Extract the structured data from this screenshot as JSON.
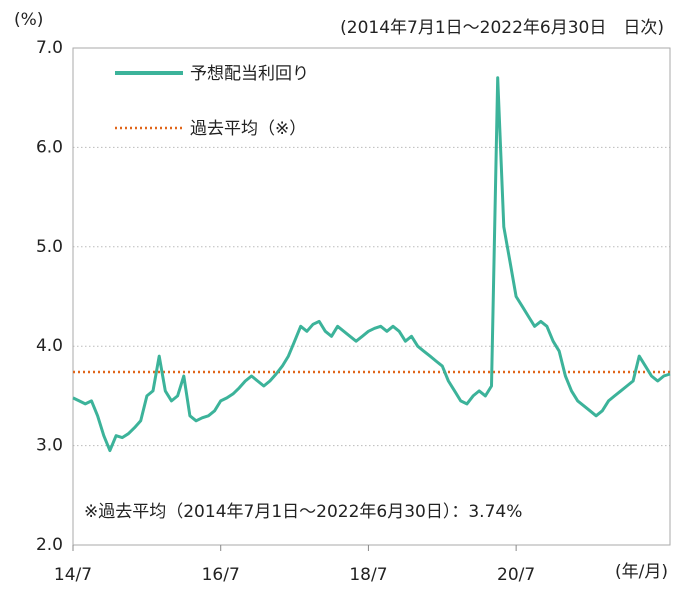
{
  "chart_data": {
    "type": "line",
    "y_unit": "(%)",
    "subtitle": "(2014年7月1日～2022年6月30日　日次)",
    "x_unit": "(年/月)",
    "note": "※過去平均（2014年7月1日～2022年6月30日）：3.74%",
    "categories": [
      "14/7",
      null,
      null,
      null,
      null,
      null,
      null,
      null,
      null,
      null,
      null,
      null,
      null,
      null,
      null,
      null,
      null,
      null,
      null,
      null,
      null,
      null,
      null,
      null,
      "16/7",
      null,
      null,
      null,
      null,
      null,
      null,
      null,
      null,
      null,
      null,
      null,
      null,
      null,
      null,
      null,
      null,
      null,
      null,
      null,
      null,
      null,
      null,
      null,
      "18/7",
      null,
      null,
      null,
      null,
      null,
      null,
      null,
      null,
      null,
      null,
      null,
      null,
      null,
      null,
      null,
      null,
      null,
      null,
      null,
      null,
      null,
      null,
      null,
      "20/7",
      null,
      null,
      null,
      null,
      null,
      null,
      null,
      null,
      null,
      null,
      null,
      null,
      null,
      null,
      null,
      null,
      null,
      null,
      null,
      null,
      null,
      null,
      null,
      null,
      null
    ],
    "series": [
      {
        "name": "予想配当利回り",
        "color": "#3cb39a",
        "values": [
          3.48,
          3.45,
          3.42,
          3.45,
          3.3,
          3.1,
          2.95,
          3.1,
          3.08,
          3.12,
          3.18,
          3.25,
          3.5,
          3.55,
          3.9,
          3.55,
          3.45,
          3.5,
          3.7,
          3.3,
          3.25,
          3.28,
          3.3,
          3.35,
          3.45,
          3.48,
          3.52,
          3.58,
          3.65,
          3.7,
          3.65,
          3.6,
          3.65,
          3.72,
          3.8,
          3.9,
          4.05,
          4.2,
          4.15,
          4.22,
          4.25,
          4.15,
          4.1,
          4.2,
          4.15,
          4.1,
          4.05,
          4.1,
          4.15,
          4.18,
          4.2,
          4.15,
          4.2,
          4.15,
          4.05,
          4.1,
          4.0,
          3.95,
          3.9,
          3.85,
          3.8,
          3.65,
          3.55,
          3.45,
          3.42,
          3.5,
          3.55,
          3.5,
          3.6,
          6.7,
          5.2,
          4.85,
          4.5,
          4.4,
          4.3,
          4.2,
          4.25,
          4.2,
          4.05,
          3.95,
          3.7,
          3.55,
          3.45,
          3.4,
          3.35,
          3.3,
          3.35,
          3.45,
          3.5,
          3.55,
          3.6,
          3.65,
          3.9,
          3.8,
          3.7,
          3.65,
          3.7,
          3.72
        ]
      }
    ],
    "reference": {
      "name": "過去平均（※）",
      "value": 3.74,
      "color": "#e0661a"
    },
    "ylim": [
      2,
      7
    ],
    "yticks": [
      {
        "value": 2,
        "label": "2.0"
      },
      {
        "value": 3,
        "label": "3.0"
      },
      {
        "value": 4,
        "label": "4.0"
      },
      {
        "value": 5,
        "label": "5.0"
      },
      {
        "value": 6,
        "label": "6.0"
      },
      {
        "value": 7,
        "label": "7.0"
      }
    ],
    "grid": true
  }
}
